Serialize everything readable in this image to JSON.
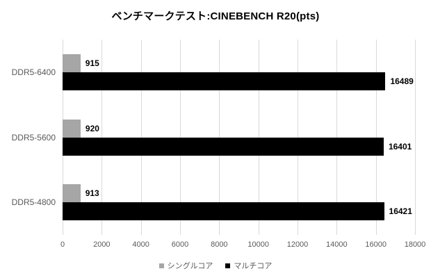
{
  "page": {
    "background": "#ffffff"
  },
  "chart_data": {
    "type": "bar",
    "orientation": "horizontal",
    "title": "ベンチマークテスト:CINEBENCH R20(pts)",
    "categories": [
      "DDR5-6400",
      "DDR5-5600",
      "DDR5-4800"
    ],
    "series": [
      {
        "name": "シングルコア",
        "color": "#a6a6a6",
        "values": [
          915,
          920,
          913
        ]
      },
      {
        "name": "マルチコア",
        "color": "#000000",
        "values": [
          16489,
          16401,
          16421
        ]
      }
    ],
    "x_ticks": [
      0,
      2000,
      4000,
      6000,
      8000,
      10000,
      12000,
      14000,
      16000,
      18000
    ],
    "xlim": [
      0,
      18000
    ],
    "grid": "vertical-gridlines",
    "legend_position": "bottom",
    "data_labels": true
  },
  "colors": {
    "gridline": "#d9d9d9",
    "axis_text": "#595959",
    "title_text": "#000000",
    "data_label_text": "#000000"
  }
}
